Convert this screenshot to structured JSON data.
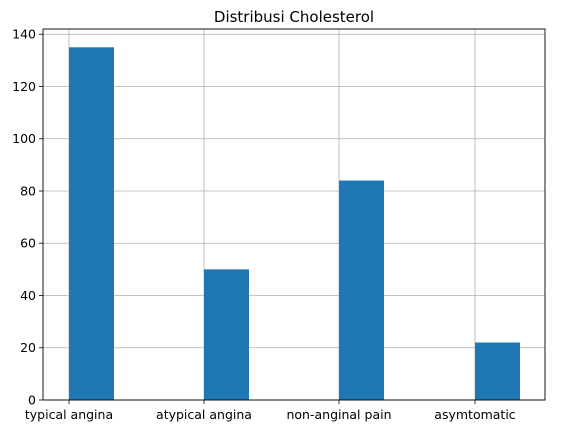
{
  "chart_data": {
    "type": "bar",
    "title": "Distribusi Cholesterol",
    "xlabel": "",
    "ylabel": "",
    "categories": [
      "typical angina",
      "atypical angina",
      "non-anginal pain",
      "asymtomatic"
    ],
    "values": [
      135,
      50,
      84,
      22
    ],
    "ylim": [
      0,
      142
    ],
    "yticks": [
      0,
      20,
      40,
      60,
      80,
      100,
      120,
      140
    ],
    "grid": true,
    "legend": "none",
    "bar_color": "#1f77b4",
    "grid_color": "#b0b0b0"
  }
}
